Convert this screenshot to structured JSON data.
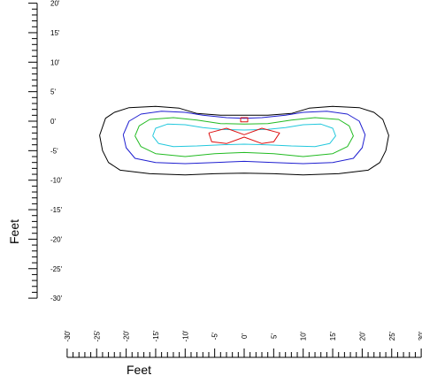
{
  "chart_data": {
    "type": "contour",
    "xlabel": "Feet",
    "ylabel": "Feet",
    "xlim": [
      -30,
      30
    ],
    "ylim": [
      -30,
      20
    ],
    "x_ticks": [
      "-30'",
      "-25'",
      "-20'",
      "-15'",
      "-10'",
      "-5'",
      "0'",
      "5'",
      "10'",
      "15'",
      "20'",
      "25'",
      "30'"
    ],
    "y_ticks": [
      "20'",
      "15'",
      "10'",
      "5'",
      "0'",
      "-5'",
      "-10'",
      "-15'",
      "-20'",
      "-25'",
      "-30'"
    ],
    "grid": false,
    "legend": "none",
    "series": [
      {
        "color": "#000000",
        "points": [
          [
            -24.5,
            -2.4
          ],
          [
            -23.5,
            0.5
          ],
          [
            -22,
            1.5
          ],
          [
            -19.5,
            2.3
          ],
          [
            -15,
            2.5
          ],
          [
            -11,
            2.2
          ],
          [
            -8,
            1.3
          ],
          [
            -4,
            1.0
          ],
          [
            0,
            1.0
          ],
          [
            4,
            1.0
          ],
          [
            8,
            1.3
          ],
          [
            11,
            2.2
          ],
          [
            15,
            2.5
          ],
          [
            19.5,
            2.3
          ],
          [
            22,
            1.5
          ],
          [
            23.5,
            0.3
          ],
          [
            24.5,
            -2.4
          ],
          [
            24,
            -5
          ],
          [
            23,
            -7
          ],
          [
            21,
            -8.3
          ],
          [
            16,
            -8.9
          ],
          [
            10,
            -9.1
          ],
          [
            5,
            -8.9
          ],
          [
            0,
            -8.8
          ],
          [
            -5,
            -8.9
          ],
          [
            -10,
            -9.1
          ],
          [
            -16,
            -8.9
          ],
          [
            -21,
            -8.3
          ],
          [
            -23,
            -7
          ],
          [
            -24,
            -5
          ],
          [
            -24.5,
            -2.4
          ]
        ]
      },
      {
        "color": "#1f1fd0",
        "points": [
          [
            -20.5,
            -2.3
          ],
          [
            -19.5,
            0
          ],
          [
            -17.5,
            1.2
          ],
          [
            -14,
            1.7
          ],
          [
            -10,
            1.5
          ],
          [
            -7,
            1.0
          ],
          [
            -3,
            0.6
          ],
          [
            0,
            0.5
          ],
          [
            3,
            0.6
          ],
          [
            7,
            1.0
          ],
          [
            10,
            1.5
          ],
          [
            14,
            1.7
          ],
          [
            17.5,
            1.2
          ],
          [
            19.5,
            0
          ],
          [
            20.5,
            -2.3
          ],
          [
            20,
            -4.5
          ],
          [
            18.5,
            -6.3
          ],
          [
            15,
            -7
          ],
          [
            10,
            -7.2
          ],
          [
            5,
            -7
          ],
          [
            0,
            -6.8
          ],
          [
            -5,
            -7
          ],
          [
            -10,
            -7.2
          ],
          [
            -15,
            -7
          ],
          [
            -18.5,
            -6.3
          ],
          [
            -20,
            -4.5
          ],
          [
            -20.5,
            -2.3
          ]
        ]
      },
      {
        "color": "#22bb22",
        "points": [
          [
            -18.5,
            -2.5
          ],
          [
            -17.8,
            -0.8
          ],
          [
            -16,
            0.3
          ],
          [
            -12,
            0.6
          ],
          [
            -8,
            0.2
          ],
          [
            -4,
            -0.4
          ],
          [
            0,
            -0.5
          ],
          [
            4,
            -0.4
          ],
          [
            8,
            0.2
          ],
          [
            12,
            0.6
          ],
          [
            16,
            0.3
          ],
          [
            17.8,
            -0.8
          ],
          [
            18.5,
            -2.5
          ],
          [
            17.5,
            -4.3
          ],
          [
            15,
            -5.5
          ],
          [
            10,
            -6.0
          ],
          [
            5,
            -5.5
          ],
          [
            0,
            -5.3
          ],
          [
            -5,
            -5.5
          ],
          [
            -10,
            -6.0
          ],
          [
            -15,
            -5.5
          ],
          [
            -17.5,
            -4.3
          ],
          [
            -18.5,
            -2.5
          ]
        ]
      },
      {
        "color": "#22c8dd",
        "points": [
          [
            -15.5,
            -2.5
          ],
          [
            -15,
            -1.2
          ],
          [
            -13,
            -0.5
          ],
          [
            -10,
            -0.6
          ],
          [
            -7,
            -1.1
          ],
          [
            -4,
            -1.4
          ],
          [
            0,
            -1.5
          ],
          [
            4,
            -1.4
          ],
          [
            7,
            -1.1
          ],
          [
            10,
            -0.6
          ],
          [
            13,
            -0.5
          ],
          [
            15,
            -1.2
          ],
          [
            15.5,
            -2.5
          ],
          [
            14.5,
            -3.8
          ],
          [
            12,
            -4.3
          ],
          [
            8,
            -4.2
          ],
          [
            4,
            -4.0
          ],
          [
            0,
            -3.9
          ],
          [
            -4,
            -4.0
          ],
          [
            -8,
            -4.2
          ],
          [
            -12,
            -4.3
          ],
          [
            -14.5,
            -3.8
          ],
          [
            -15.5,
            -2.5
          ]
        ]
      },
      {
        "color": "#dd1111",
        "points": [
          [
            -6,
            -2
          ],
          [
            -3,
            -1.2
          ],
          [
            0,
            -2.3
          ],
          [
            3,
            -1.2
          ],
          [
            6,
            -2
          ],
          [
            5,
            -3.5
          ],
          [
            3,
            -3.8
          ],
          [
            0,
            -2.7
          ],
          [
            -3,
            -3.8
          ],
          [
            -5.5,
            -3.5
          ],
          [
            -6,
            -2
          ]
        ]
      },
      {
        "color": "#dd1111",
        "points": [
          [
            -0.6,
            0.6
          ],
          [
            0.6,
            0.6
          ],
          [
            0.6,
            -0.1
          ],
          [
            -0.6,
            -0.1
          ],
          [
            -0.6,
            0.6
          ]
        ]
      }
    ]
  }
}
